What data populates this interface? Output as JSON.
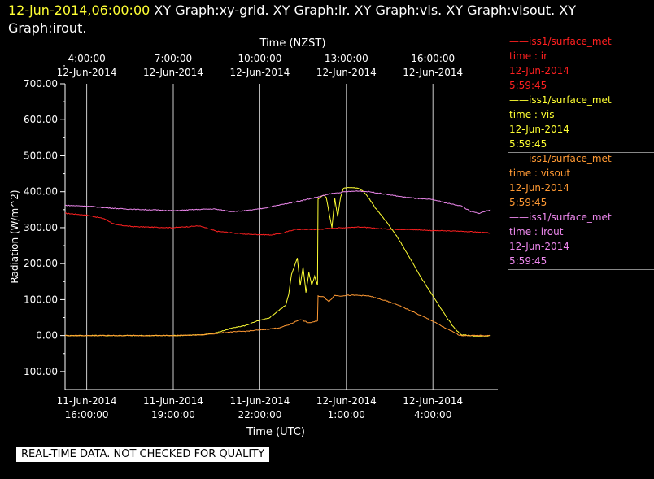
{
  "header": {
    "timestamp": "12-jun-2014,06:00:00",
    "graphs": "XY Graph:xy-grid.  XY Graph:ir.  XY Graph:vis.  XY Graph:visout.  XY Graph:irout."
  },
  "notice": "REAL-TIME DATA. NOT CHECKED FOR QUALITY",
  "colors": {
    "ir": "#ff2020",
    "vis": "#ffff33",
    "visout": "#ff9933",
    "irout": "#ee88ee",
    "grid": "#cccccc"
  },
  "legend": [
    {
      "source": "iss1/surface_met",
      "var": "time : ir",
      "date": "12-Jun-2014",
      "time": "5:59:45",
      "color": "#ff2020"
    },
    {
      "source": "iss1/surface_met",
      "var": "time : vis",
      "date": "12-Jun-2014",
      "time": "5:59:45",
      "color": "#ffff33"
    },
    {
      "source": "iss1/surface_met",
      "var": "time : visout",
      "date": "12-Jun-2014",
      "time": "5:59:45",
      "color": "#ff9933"
    },
    {
      "source": "iss1/surface_met",
      "var": "time : irout",
      "date": "12-Jun-2014",
      "time": "5:59:45",
      "color": "#ee88ee"
    }
  ],
  "chart_data": {
    "type": "line",
    "ylabel": "Radiation (W/m^2)",
    "xlabel_bottom": "Time (UTC)",
    "xlabel_top": "Time (NZST)",
    "ylim": [
      -150,
      700
    ],
    "xlim_utc_hours": [
      15.25,
      30.25
    ],
    "yticks": [
      -100,
      0,
      100,
      200,
      300,
      400,
      500,
      600,
      700
    ],
    "ytick_labels": [
      "-100.00",
      "0.00",
      "100.00",
      "200.00",
      "300.00",
      "400.00",
      "500.00",
      "600.00",
      "700.00"
    ],
    "xticks_bottom": [
      {
        "h": 16,
        "date": "11-Jun-2014",
        "time": "16:00:00"
      },
      {
        "h": 19,
        "date": "11-Jun-2014",
        "time": "19:00:00"
      },
      {
        "h": 22,
        "date": "11-Jun-2014",
        "time": "22:00:00"
      },
      {
        "h": 25,
        "date": "12-Jun-2014",
        "time": "1:00:00"
      },
      {
        "h": 28,
        "date": "12-Jun-2014",
        "time": "4:00:00"
      }
    ],
    "xticks_top": [
      {
        "h": 16,
        "time": "4:00:00",
        "date": "12-Jun-2014"
      },
      {
        "h": 19,
        "time": "7:00:00",
        "date": "12-Jun-2014"
      },
      {
        "h": 22,
        "time": "10:00:00",
        "date": "12-Jun-2014"
      },
      {
        "h": 25,
        "time": "13:00:00",
        "date": "12-Jun-2014"
      },
      {
        "h": 28,
        "time": "16:00:00",
        "date": "12-Jun-2014"
      }
    ],
    "grid": true,
    "series": [
      {
        "name": "time : ir",
        "color": "#ff2020",
        "x": [
          15.25,
          16.0,
          16.6,
          17.0,
          17.6,
          18.4,
          19.0,
          19.9,
          20.5,
          21.5,
          22.4,
          22.8,
          23.2,
          23.6,
          24.0,
          24.4,
          24.9,
          25.5,
          26.0,
          26.5,
          27.0,
          27.5,
          28.0,
          28.5,
          29.0,
          29.5,
          30.0
        ],
        "y": [
          340,
          335,
          325,
          308,
          303,
          301,
          300,
          305,
          290,
          282,
          280,
          285,
          295,
          295,
          295,
          298,
          300,
          302,
          298,
          296,
          295,
          294,
          292,
          291,
          290,
          288,
          285
        ]
      },
      {
        "name": "time : vis",
        "color": "#ffff33",
        "x": [
          15.25,
          16.0,
          17.0,
          18.0,
          19.0,
          20.0,
          20.5,
          21.0,
          21.5,
          21.9,
          22.3,
          22.5,
          22.9,
          23.0,
          23.1,
          23.3,
          23.4,
          23.5,
          23.6,
          23.7,
          23.8,
          23.9,
          24.0,
          24.02,
          24.1,
          24.2,
          24.3,
          24.5,
          24.6,
          24.7,
          24.8,
          24.9,
          25.0,
          25.1,
          25.2,
          25.4,
          25.5,
          25.6,
          25.8,
          26.0,
          26.4,
          26.8,
          27.2,
          27.6,
          28.0,
          28.4,
          28.7,
          28.9,
          29.0,
          29.3,
          29.6,
          30.0
        ],
        "y": [
          0,
          0,
          0,
          0,
          0,
          2,
          8,
          20,
          28,
          40,
          48,
          60,
          85,
          115,
          170,
          215,
          140,
          190,
          120,
          175,
          140,
          165,
          140,
          380,
          385,
          390,
          385,
          300,
          380,
          330,
          385,
          410,
          410,
          412,
          412,
          410,
          405,
          400,
          380,
          355,
          315,
          270,
          215,
          160,
          110,
          60,
          25,
          8,
          2,
          0,
          -2,
          0
        ]
      },
      {
        "name": "time : visout",
        "color": "#ff9933",
        "x": [
          15.25,
          16.0,
          17.0,
          18.0,
          19.0,
          20.0,
          20.5,
          21.0,
          21.5,
          21.9,
          22.3,
          22.7,
          23.0,
          23.4,
          23.7,
          23.95,
          24.0,
          24.02,
          24.2,
          24.4,
          24.6,
          24.8,
          25.0,
          25.4,
          25.8,
          26.0,
          26.4,
          26.8,
          27.2,
          27.6,
          28.0,
          28.4,
          28.7,
          28.9,
          29.0,
          29.5,
          30.0
        ],
        "y": [
          0,
          0,
          0,
          0,
          0,
          2,
          6,
          10,
          12,
          15,
          18,
          22,
          30,
          45,
          35,
          40,
          40,
          110,
          108,
          95,
          112,
          110,
          112,
          112,
          110,
          105,
          96,
          85,
          70,
          55,
          40,
          22,
          10,
          2,
          0,
          0,
          0
        ]
      },
      {
        "name": "time : irout",
        "color": "#ee88ee",
        "x": [
          15.25,
          16.0,
          16.7,
          17.3,
          18.0,
          18.8,
          19.0,
          19.7,
          20.4,
          21.0,
          21.5,
          22.0,
          22.5,
          23.0,
          23.6,
          24.0,
          24.5,
          25.0,
          25.4,
          25.8,
          26.2,
          26.6,
          27.0,
          27.6,
          28.0,
          28.5,
          29.0,
          29.3,
          29.6,
          30.0
        ],
        "y": [
          362,
          360,
          355,
          352,
          350,
          348,
          347,
          350,
          352,
          345,
          347,
          352,
          360,
          368,
          378,
          385,
          395,
          400,
          402,
          400,
          395,
          390,
          385,
          380,
          378,
          368,
          360,
          345,
          340,
          350
        ]
      }
    ]
  }
}
